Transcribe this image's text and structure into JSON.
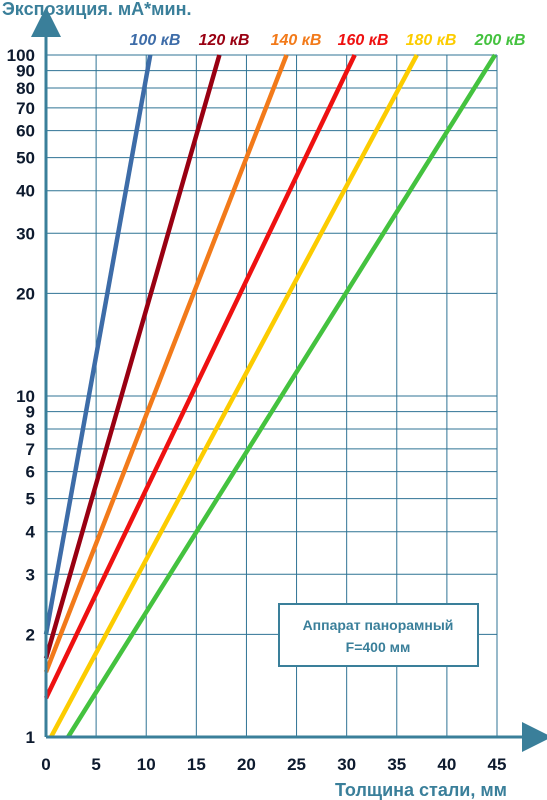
{
  "chart_data": {
    "type": "line",
    "ylabel": "Экспозиция. мА*мин.",
    "xlabel": "Толщина стали, мм",
    "x_scale": "linear",
    "y_scale": "log",
    "xlim": [
      0,
      45
    ],
    "ylim": [
      1,
      100
    ],
    "grid": true,
    "x_ticks": [
      "0",
      "5",
      "10",
      "15",
      "20",
      "25",
      "30",
      "35",
      "40",
      "45"
    ],
    "x_tick_values": [
      0,
      5,
      10,
      15,
      20,
      25,
      30,
      35,
      40,
      45
    ],
    "y_ticks": [
      "1",
      "2",
      "3",
      "4",
      "5",
      "6",
      "7",
      "8",
      "9",
      "10",
      "20",
      "30",
      "40",
      "50",
      "60",
      "70",
      "80",
      "90",
      "100"
    ],
    "y_tick_values": [
      1,
      2,
      3,
      4,
      5,
      6,
      7,
      8,
      9,
      10,
      20,
      30,
      40,
      50,
      60,
      70,
      80,
      90,
      100
    ],
    "legend_position": "top",
    "series": [
      {
        "name": "100 кВ",
        "color": "#3d6ca8",
        "x": [
          0,
          10.4
        ],
        "y": [
          2.0,
          100
        ]
      },
      {
        "name": "120 кВ",
        "color": "#990012",
        "x": [
          0,
          17.3
        ],
        "y": [
          1.7,
          100
        ]
      },
      {
        "name": "140 кВ",
        "color": "#f27a1a",
        "x": [
          0,
          24.0
        ],
        "y": [
          1.55,
          100
        ]
      },
      {
        "name": "160 кВ",
        "color": "#ee1111",
        "x": [
          0,
          30.8
        ],
        "y": [
          1.3,
          100
        ]
      },
      {
        "name": "180 кВ",
        "color": "#fccc00",
        "x": [
          0.5,
          37.0
        ],
        "y": [
          1.0,
          100
        ]
      },
      {
        "name": "200 кВ",
        "color": "#44c23f",
        "x": [
          2.2,
          44.8
        ],
        "y": [
          1.0,
          100
        ]
      }
    ],
    "annotation": {
      "line1": "Аппарат панорамный",
      "line2": "F=400 мм"
    }
  }
}
